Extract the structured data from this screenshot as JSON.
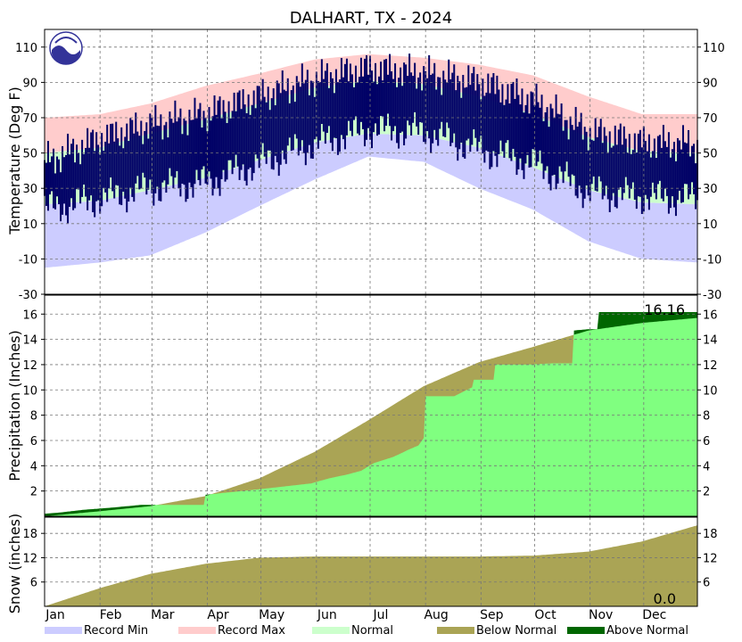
{
  "chart_data": {
    "title": "DALHART, TX - 2024",
    "months": [
      "Jan",
      "Feb",
      "Mar",
      "Apr",
      "May",
      "Jun",
      "Jul",
      "Aug",
      "Sep",
      "Oct",
      "Nov",
      "Dec"
    ],
    "legend": [
      {
        "label": "Record Min",
        "color": "#ccccff"
      },
      {
        "label": "Record Max",
        "color": "#ffcccc"
      },
      {
        "label": "Normal",
        "color": "#ccffcc"
      },
      {
        "label": "Below Normal",
        "color": "#aaa455"
      },
      {
        "label": "Above Normal",
        "color": "#006600"
      }
    ],
    "temperature": {
      "type": "area",
      "ylabel": "Temperature (Deg F)",
      "ylim": [
        -30,
        120
      ],
      "ticks": [
        -30,
        -10,
        10,
        30,
        50,
        70,
        90,
        110
      ],
      "x_days": [
        1,
        32,
        60,
        91,
        121,
        152,
        182,
        213,
        244,
        274,
        305,
        335,
        366
      ],
      "record_min": [
        -15,
        -12,
        -8,
        5,
        20,
        35,
        48,
        45,
        30,
        18,
        0,
        -10,
        -12
      ],
      "record_max": [
        70,
        72,
        78,
        88,
        95,
        103,
        106,
        104,
        100,
        94,
        82,
        72,
        72
      ],
      "normal_low": [
        21,
        23,
        29,
        36,
        46,
        56,
        61,
        60,
        53,
        42,
        29,
        22,
        21
      ],
      "normal_high": [
        50,
        53,
        61,
        69,
        78,
        87,
        91,
        89,
        82,
        72,
        59,
        51,
        50
      ],
      "observed_low": [
        18,
        24,
        30,
        33,
        44,
        55,
        63,
        62,
        52,
        44,
        28,
        25,
        24
      ],
      "observed_high": [
        45,
        58,
        66,
        72,
        82,
        92,
        98,
        95,
        90,
        80,
        62,
        56,
        55
      ],
      "colors": {
        "record_min": "#ccccff",
        "record_max": "#ffcccc",
        "normal": "#ccffcc",
        "observed": "#000066"
      }
    },
    "precipitation": {
      "type": "area",
      "ylabel": "Precipitation (Inches)",
      "ylim": [
        0,
        17.5
      ],
      "ticks": [
        2,
        4,
        6,
        8,
        10,
        12,
        14,
        16
      ],
      "total_label": "16.16",
      "normal_cum": {
        "x_days": [
          1,
          32,
          60,
          91,
          121,
          152,
          182,
          213,
          244,
          274,
          305,
          335,
          366
        ],
        "values": [
          0,
          0.4,
          0.8,
          1.6,
          3.0,
          5.1,
          7.6,
          10.3,
          12.2,
          13.4,
          14.7,
          15.3,
          15.7
        ]
      },
      "observed_cum": {
        "x_days": [
          1,
          10,
          22,
          40,
          55,
          90,
          91,
          125,
          150,
          160,
          170,
          178,
          185,
          196,
          205,
          210,
          213,
          214,
          230,
          240,
          241,
          252,
          253,
          270,
          285,
          296,
          297,
          305,
          310,
          311,
          366
        ],
        "values": [
          0.2,
          0.3,
          0.5,
          0.7,
          0.9,
          0.9,
          1.7,
          2.2,
          2.6,
          3.0,
          3.3,
          3.6,
          4.2,
          4.7,
          5.3,
          5.6,
          6.2,
          9.5,
          9.5,
          10.2,
          10.8,
          10.8,
          12.0,
          12.0,
          12.1,
          12.1,
          14.7,
          14.8,
          14.8,
          16.16,
          16.16
        ]
      },
      "colors": {
        "observed": "#80ff80",
        "below_normal": "#aaa455",
        "above_normal": "#006600"
      }
    },
    "snow": {
      "type": "area",
      "ylabel": "Snow (inches)",
      "ylim": [
        0,
        22
      ],
      "ticks": [
        6,
        12,
        18
      ],
      "total_label": "0.0",
      "normal_cum": {
        "x_days": [
          1,
          32,
          60,
          91,
          121,
          152,
          182,
          213,
          244,
          274,
          305,
          335,
          366
        ],
        "values": [
          0,
          4.5,
          8.0,
          10.5,
          12.0,
          12.3,
          12.3,
          12.3,
          12.3,
          12.5,
          13.5,
          16.0,
          20.0
        ]
      },
      "observed_total": 0.0,
      "colors": {
        "below_normal": "#aaa455"
      }
    }
  }
}
